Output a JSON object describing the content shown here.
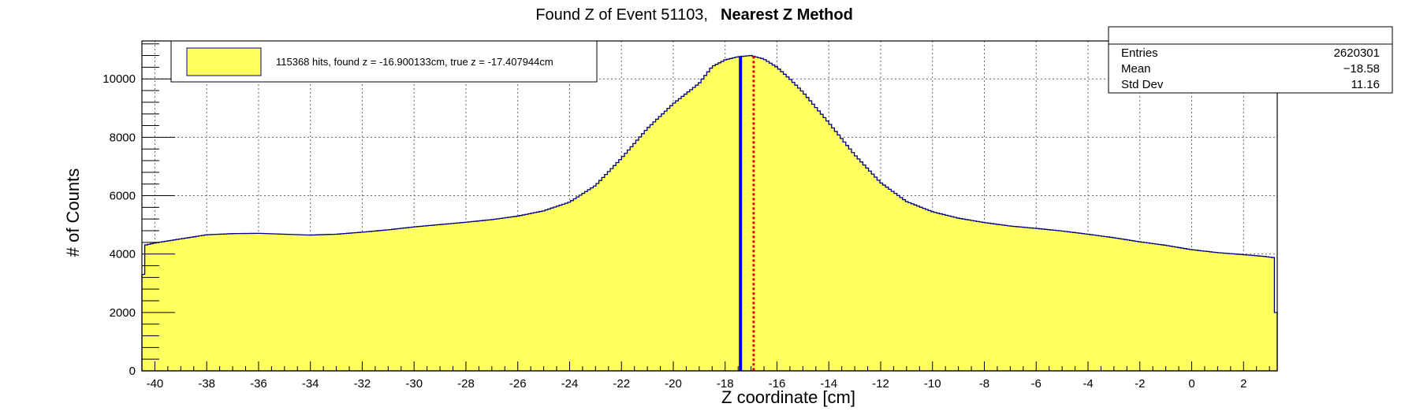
{
  "chart_data": {
    "type": "bar",
    "title": "Found Z of Event 51103,",
    "title_bold": "Nearest Z Method",
    "xlabel": "Z coordinate [cm]",
    "ylabel": "# of Counts",
    "xlim": [
      -40.5,
      3.3
    ],
    "ylim": [
      0,
      11300
    ],
    "x_ticks": [
      -40,
      -38,
      -36,
      -34,
      -32,
      -30,
      -28,
      -26,
      -24,
      -22,
      -20,
      -18,
      -16,
      -14,
      -12,
      -10,
      -8,
      -6,
      -4,
      -2,
      0,
      2
    ],
    "y_ticks": [
      0,
      2000,
      4000,
      6000,
      8000,
      10000
    ],
    "grid": true,
    "fill_color": "#ffff60",
    "line_color": "#000080",
    "legend": {
      "position": "top-left",
      "entry": "115368 hits, found z = -16.900133cm, true z = -17.407944cm"
    },
    "stats": {
      "position": "top-right",
      "rows": [
        {
          "label": "Entries",
          "value": "2620301"
        },
        {
          "label": "Mean",
          "value": "−18.58"
        },
        {
          "label": "Std Dev",
          "value": "11.16"
        }
      ]
    },
    "markers": [
      {
        "name": "true z",
        "x": -17.407944,
        "color": "#0000dd",
        "style": "solid"
      },
      {
        "name": "found z",
        "x": -16.900133,
        "color": "#dd0000",
        "style": "dotted"
      }
    ],
    "profile": {
      "x": [
        -40.5,
        -40.4,
        -40.3,
        -40.0,
        -39.0,
        -38.0,
        -37.0,
        -36.0,
        -35.0,
        -34.0,
        -33.0,
        -32.0,
        -31.0,
        -30.0,
        -29.0,
        -28.0,
        -27.0,
        -26.0,
        -25.0,
        -24.0,
        -23.0,
        -22.0,
        -21.0,
        -20.0,
        -19.0,
        -18.5,
        -18.0,
        -17.5,
        -17.0,
        -16.5,
        -16.0,
        -15.5,
        -15.0,
        -14.0,
        -13.0,
        -12.0,
        -11.0,
        -10.0,
        -9.0,
        -8.0,
        -7.0,
        -6.0,
        -5.0,
        -4.0,
        -3.0,
        -2.0,
        -1.0,
        0.0,
        1.0,
        2.0,
        2.8,
        3.15,
        3.2,
        3.3
      ],
      "y": [
        2100,
        4300,
        4320,
        4380,
        4520,
        4660,
        4700,
        4710,
        4680,
        4650,
        4680,
        4750,
        4830,
        4930,
        5010,
        5090,
        5180,
        5300,
        5480,
        5780,
        6350,
        7280,
        8300,
        9150,
        9850,
        10420,
        10650,
        10760,
        10800,
        10680,
        10400,
        10000,
        9550,
        8500,
        7400,
        6450,
        5800,
        5450,
        5230,
        5080,
        4960,
        4880,
        4790,
        4680,
        4560,
        4420,
        4300,
        4150,
        4050,
        3980,
        3920,
        3880,
        2000,
        2000
      ]
    }
  }
}
